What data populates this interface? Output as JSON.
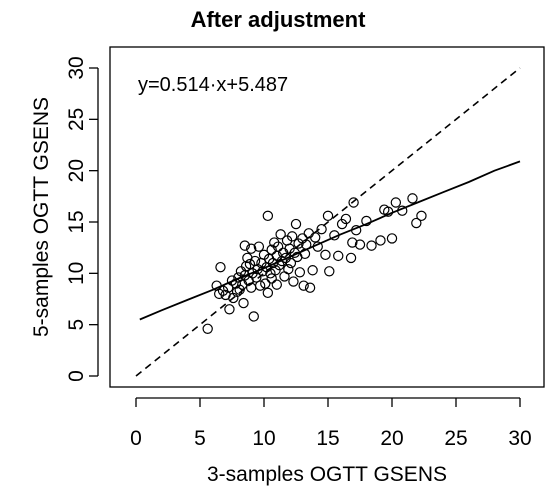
{
  "chart_data": {
    "type": "scatter",
    "title": "After adjustment",
    "xlabel": "3-samples OGTT GSENS",
    "ylabel": "5-samples OGTT GSENS",
    "xlim": [
      0,
      30
    ],
    "ylim": [
      0,
      30
    ],
    "xticks": [
      0,
      5,
      10,
      15,
      20,
      25,
      30
    ],
    "yticks": [
      0,
      5,
      10,
      15,
      20,
      25,
      30
    ],
    "grid": false,
    "annotation": "y=0.514·x+5.487",
    "reference_line": {
      "style": "dashed",
      "points": [
        [
          0,
          0
        ],
        [
          30,
          30
        ]
      ]
    },
    "fit_curve": {
      "style": "solid",
      "points": [
        [
          0.3,
          5.5
        ],
        [
          2,
          6.4
        ],
        [
          4,
          7.4
        ],
        [
          6,
          8.4
        ],
        [
          8,
          9.5
        ],
        [
          10,
          10.5
        ],
        [
          12,
          11.6
        ],
        [
          14,
          12.7
        ],
        [
          16,
          13.8
        ],
        [
          18,
          14.8
        ],
        [
          20,
          15.9
        ],
        [
          22,
          16.9
        ],
        [
          24,
          17.9
        ],
        [
          26,
          18.9
        ],
        [
          28,
          20.0
        ],
        [
          30,
          20.9
        ]
      ]
    },
    "points": [
      [
        5.6,
        4.6
      ],
      [
        6.3,
        8.8
      ],
      [
        6.5,
        8.0
      ],
      [
        6.6,
        10.6
      ],
      [
        6.8,
        8.3
      ],
      [
        7.0,
        7.9
      ],
      [
        7.2,
        8.6
      ],
      [
        7.3,
        6.5
      ],
      [
        7.5,
        9.3
      ],
      [
        7.6,
        7.6
      ],
      [
        7.8,
        9.0
      ],
      [
        7.9,
        8.2
      ],
      [
        8.0,
        9.6
      ],
      [
        8.1,
        8.4
      ],
      [
        8.2,
        10.2
      ],
      [
        8.3,
        8.9
      ],
      [
        8.4,
        7.1
      ],
      [
        8.5,
        12.7
      ],
      [
        8.5,
        9.8
      ],
      [
        8.6,
        10.7
      ],
      [
        8.7,
        11.5
      ],
      [
        8.8,
        9.3
      ],
      [
        8.9,
        10.9
      ],
      [
        9.0,
        12.4
      ],
      [
        9.0,
        8.6
      ],
      [
        9.1,
        10.0
      ],
      [
        9.2,
        5.8
      ],
      [
        9.3,
        11.2
      ],
      [
        9.4,
        9.6
      ],
      [
        9.5,
        10.4
      ],
      [
        9.6,
        12.6
      ],
      [
        9.7,
        8.8
      ],
      [
        9.8,
        11.0
      ],
      [
        9.9,
        10.2
      ],
      [
        10.0,
        11.8
      ],
      [
        10.1,
        9.0
      ],
      [
        10.2,
        10.6
      ],
      [
        10.3,
        15.6
      ],
      [
        10.3,
        8.1
      ],
      [
        10.4,
        11.4
      ],
      [
        10.5,
        10.0
      ],
      [
        10.6,
        12.3
      ],
      [
        10.6,
        9.5
      ],
      [
        10.7,
        11.0
      ],
      [
        10.8,
        13.0
      ],
      [
        10.9,
        10.3
      ],
      [
        11.0,
        11.7
      ],
      [
        11.0,
        8.9
      ],
      [
        11.1,
        12.6
      ],
      [
        11.2,
        10.8
      ],
      [
        11.3,
        13.8
      ],
      [
        11.4,
        11.2
      ],
      [
        11.5,
        12.0
      ],
      [
        11.6,
        9.7
      ],
      [
        11.7,
        11.5
      ],
      [
        11.8,
        13.2
      ],
      [
        11.9,
        10.4
      ],
      [
        12.0,
        12.4
      ],
      [
        12.1,
        11.0
      ],
      [
        12.2,
        13.6
      ],
      [
        12.3,
        9.2
      ],
      [
        12.4,
        12.0
      ],
      [
        12.5,
        14.8
      ],
      [
        12.6,
        11.6
      ],
      [
        12.7,
        12.9
      ],
      [
        12.8,
        10.1
      ],
      [
        13.0,
        13.4
      ],
      [
        13.1,
        8.8
      ],
      [
        13.2,
        11.9
      ],
      [
        13.3,
        12.8
      ],
      [
        13.5,
        13.9
      ],
      [
        13.6,
        8.6
      ],
      [
        13.8,
        10.3
      ],
      [
        14.0,
        13.5
      ],
      [
        14.2,
        12.6
      ],
      [
        14.5,
        14.3
      ],
      [
        14.8,
        11.8
      ],
      [
        15.0,
        15.6
      ],
      [
        15.1,
        10.2
      ],
      [
        15.5,
        13.7
      ],
      [
        15.8,
        11.7
      ],
      [
        16.1,
        14.8
      ],
      [
        16.4,
        15.3
      ],
      [
        16.8,
        11.5
      ],
      [
        16.9,
        13.0
      ],
      [
        17.0,
        16.9
      ],
      [
        17.2,
        14.2
      ],
      [
        17.5,
        12.8
      ],
      [
        18.0,
        15.1
      ],
      [
        18.4,
        12.7
      ],
      [
        19.1,
        13.2
      ],
      [
        19.4,
        16.2
      ],
      [
        19.7,
        16.0
      ],
      [
        20.0,
        13.4
      ],
      [
        20.3,
        16.9
      ],
      [
        20.8,
        16.1
      ],
      [
        21.6,
        17.3
      ],
      [
        21.9,
        14.9
      ],
      [
        22.3,
        15.6
      ]
    ]
  }
}
